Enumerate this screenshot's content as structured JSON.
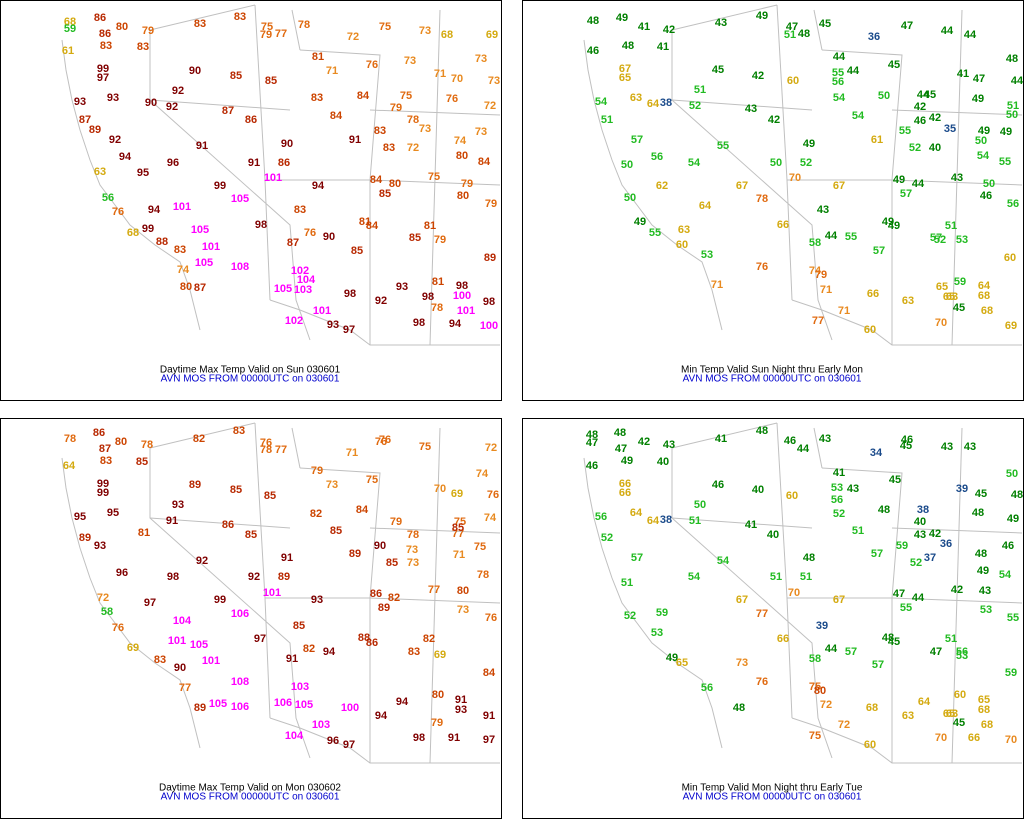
{
  "panels": [
    {
      "title": "Daytime Max Temp Valid on Sun 030601",
      "subtitle": "AVN MOS FROM 00000UTC on 030601",
      "values": [
        68,
        86,
        80,
        79,
        83,
        83,
        75,
        78,
        72,
        75,
        73,
        68,
        69,
        59,
        86,
        61,
        83,
        83,
        79,
        77,
        81,
        76,
        73,
        73,
        99,
        90,
        85,
        85,
        71,
        71,
        70,
        73,
        97,
        92,
        84,
        75,
        76,
        93,
        93,
        90,
        92,
        83,
        79,
        72,
        87,
        86,
        84,
        78,
        91,
        83,
        73,
        74,
        73,
        91,
        90,
        83,
        72,
        96,
        91,
        86,
        80,
        84,
        101,
        94,
        84,
        80,
        75,
        79,
        56,
        99,
        105,
        85,
        94,
        101,
        83,
        80,
        79,
        98,
        81,
        84,
        81,
        85,
        79,
        76,
        90,
        87,
        105,
        101,
        85,
        89,
        108,
        105,
        102,
        104,
        81,
        98,
        103,
        105,
        98,
        92,
        93,
        98,
        100,
        98,
        101,
        101,
        102,
        93,
        97,
        98,
        94,
        100,
        78,
        87,
        89,
        92,
        94,
        95,
        63,
        76,
        68,
        88,
        83,
        74,
        80,
        87,
        99
      ]
    },
    {
      "title": "Min Temp Valid Sun Night thru Early Mon",
      "subtitle": "AVN MOS FROM 00000UTC on 030601",
      "values": [
        48,
        49,
        41,
        42,
        43,
        49,
        47,
        45,
        36,
        47,
        44,
        44,
        48,
        46,
        48,
        41,
        51,
        48,
        44,
        44,
        45,
        41,
        47,
        44,
        45,
        42,
        60,
        55,
        56,
        54,
        67,
        65,
        63,
        64,
        38,
        52,
        51,
        50,
        44,
        45,
        49,
        51,
        50,
        43,
        42,
        54,
        54,
        42,
        46,
        42,
        35,
        55,
        49,
        49,
        52,
        40,
        50,
        55,
        49,
        61,
        54,
        55,
        54,
        50,
        52,
        43,
        50,
        70,
        67,
        49,
        44,
        57,
        46,
        56,
        67,
        78,
        43,
        66,
        58,
        44,
        55,
        49,
        49,
        51,
        57,
        52,
        53,
        57,
        60,
        76,
        74,
        79,
        71,
        66,
        63,
        65,
        59,
        64,
        68,
        65,
        63,
        71,
        77,
        60,
        70,
        45,
        68,
        69,
        51,
        57,
        56,
        50,
        62,
        50,
        49,
        55,
        63,
        60,
        53,
        71,
        64
      ]
    },
    {
      "title": "Daytime Max Temp Valid on Mon 030602",
      "subtitle": "AVN MOS FROM 00000UTC on 030601",
      "values": [
        78,
        86,
        80,
        78,
        82,
        83,
        76,
        78,
        77,
        76,
        75,
        72,
        64,
        87,
        83,
        85,
        71,
        76,
        74,
        79,
        73,
        75,
        70,
        69,
        76,
        99,
        99,
        89,
        85,
        85,
        84,
        79,
        75,
        74,
        95,
        95,
        91,
        93,
        82,
        81,
        86,
        85,
        85,
        90,
        78,
        77,
        85,
        75,
        92,
        91,
        89,
        73,
        71,
        78,
        85,
        73,
        98,
        92,
        89,
        101,
        93,
        86,
        82,
        77,
        80,
        58,
        99,
        106,
        89,
        73,
        76,
        104,
        85,
        97,
        101,
        105,
        91,
        82,
        94,
        88,
        86,
        82,
        83,
        69,
        84,
        101,
        108,
        103,
        105,
        106,
        100,
        94,
        94,
        80,
        91,
        93,
        79,
        91,
        104,
        103,
        96,
        97,
        98,
        91,
        97,
        106,
        105,
        89,
        93,
        96,
        72,
        76,
        69,
        83,
        90,
        77,
        89,
        97
      ]
    },
    {
      "title": "Min Temp Valid Mon Night thru Early Tue",
      "subtitle": "AVN MOS FROM 00000UTC on 030601",
      "values": [
        48,
        48,
        42,
        43,
        41,
        48,
        46,
        44,
        43,
        34,
        45,
        46,
        43,
        43,
        50,
        47,
        47,
        49,
        40,
        46,
        39,
        45,
        48,
        41,
        53,
        56,
        43,
        45,
        46,
        40,
        60,
        50,
        66,
        66,
        56,
        64,
        64,
        38,
        51,
        41,
        40,
        52,
        48,
        38,
        40,
        42,
        48,
        49,
        51,
        43,
        36,
        37,
        46,
        48,
        57,
        59,
        52,
        54,
        49,
        54,
        48,
        54,
        51,
        51,
        70,
        67,
        47,
        44,
        42,
        43,
        55,
        53,
        55,
        67,
        77,
        39,
        66,
        58,
        44,
        57,
        48,
        45,
        51,
        47,
        56,
        53,
        57,
        59,
        76,
        75,
        80,
        72,
        68,
        63,
        64,
        60,
        65,
        68,
        63,
        65,
        45,
        68,
        70,
        75,
        72,
        60,
        70,
        66,
        52,
        57,
        51,
        59,
        52,
        53,
        49,
        65,
        56,
        48,
        73
      ]
    }
  ]
}
